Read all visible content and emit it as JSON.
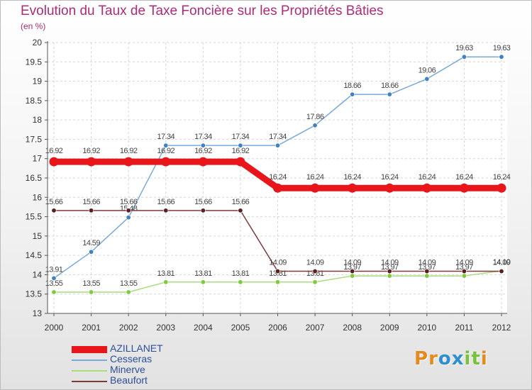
{
  "title": "Evolution du Taux de Taxe Foncière sur les Propriétés Bâties",
  "subtitle": "(en %)",
  "logo": {
    "text": "Proxiti",
    "letters": [
      "P",
      "r",
      "o",
      "x",
      "i",
      "t",
      "i"
    ],
    "colors": [
      "#e48a1e",
      "#e48a1e",
      "#2e8fd0",
      "#2e8fd0",
      "#78c13a",
      "#78c13a",
      "#e48a1e"
    ]
  },
  "chart_data": {
    "type": "line",
    "x": [
      "2000",
      "2001",
      "2002",
      "2003",
      "2004",
      "2005",
      "2006",
      "2007",
      "2008",
      "2009",
      "2010",
      "2011",
      "2012"
    ],
    "ylim": [
      13,
      20
    ],
    "yticks": [
      "13",
      "13.5",
      "14",
      "14.5",
      "15",
      "15.5",
      "16",
      "16.5",
      "17",
      "17.5",
      "18",
      "18.5",
      "19",
      "19.5",
      "20"
    ],
    "title": "Evolution du Taux de Taxe Foncière sur les Propriétés Bâties",
    "ylabel": "(en %)",
    "xlabel": "",
    "series": [
      {
        "name": "AZILLANET",
        "color": "#e8161b",
        "thick": true,
        "values": [
          16.92,
          16.92,
          16.92,
          16.92,
          16.92,
          16.92,
          16.24,
          16.24,
          16.24,
          16.24,
          16.24,
          16.24,
          16.24
        ],
        "labels": [
          "16.92",
          "16.92",
          "16.92",
          "16.92",
          "16.92",
          "16.92",
          "16.24",
          "16.24",
          "16.24",
          "16.24",
          "16.24",
          "16.24",
          "16.24"
        ]
      },
      {
        "name": "Cesseras",
        "color": "#7aaad6",
        "marker": "#3f82c4",
        "thick": false,
        "values": [
          13.91,
          14.59,
          15.48,
          17.34,
          17.34,
          17.34,
          17.34,
          17.86,
          18.66,
          18.66,
          19.06,
          19.63,
          19.63
        ],
        "labels": [
          "13.91",
          "14.59",
          "15.48",
          "17.34",
          "17.34",
          "17.34",
          "17.34",
          "17.86",
          "18.66",
          "18.66",
          "19.06",
          "19.63",
          "19.63"
        ]
      },
      {
        "name": "Minerve",
        "color": "#a8dc7c",
        "marker": "#7ccc3e",
        "thick": false,
        "values": [
          13.55,
          13.55,
          13.55,
          13.81,
          13.81,
          13.81,
          13.81,
          13.81,
          13.97,
          13.97,
          13.97,
          13.97,
          14.1
        ],
        "labels": [
          "13.55",
          "13.55",
          "13.55",
          "13.81",
          "13.81",
          "13.81",
          "13.81",
          "13.81",
          "13.97",
          "13.97",
          "13.97",
          "13.97",
          "14.10"
        ]
      },
      {
        "name": "Beaufort",
        "color": "#7e3a3a",
        "marker": "#5a1f1f",
        "thick": false,
        "values": [
          15.66,
          15.66,
          15.66,
          15.66,
          15.66,
          15.66,
          14.09,
          14.09,
          14.09,
          14.09,
          14.09,
          14.09,
          14.09
        ],
        "labels": [
          "15.66",
          "15.66",
          "15.66",
          "15.66",
          "15.66",
          "15.66",
          "14.09",
          "14.09",
          "14.09",
          "14.09",
          "14.09",
          "14.09",
          "14.09"
        ]
      }
    ]
  }
}
